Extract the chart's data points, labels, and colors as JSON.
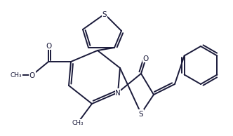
{
  "figsize": [
    3.31,
    1.93
  ],
  "dpi": 100,
  "lc": "#1a1a3a",
  "lw": 1.4,
  "dg": 0.032,
  "fs": 7.0
}
